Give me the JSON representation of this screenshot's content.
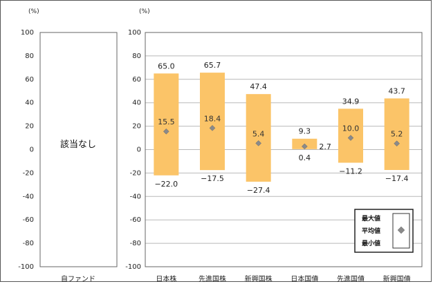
{
  "chart_data": [
    {
      "type": "bar",
      "subtype": "range",
      "ylabel": "(%)",
      "ylim": [
        -100,
        100
      ],
      "yticks": [
        100,
        80,
        60,
        40,
        20,
        0,
        -20,
        -40,
        -60,
        -80,
        -100
      ],
      "categories": [
        "自ファンド"
      ],
      "annotation": "該当なし",
      "grid": true
    },
    {
      "type": "bar",
      "subtype": "range",
      "ylabel": "(%)",
      "ylim": [
        -100,
        100
      ],
      "yticks": [
        100,
        80,
        60,
        40,
        20,
        0,
        -20,
        -40,
        -60,
        -80,
        -100
      ],
      "grid": true,
      "categories": [
        "日本株",
        "先進国株",
        "新興国株",
        "日本国債",
        "先進国債",
        "新興国債"
      ],
      "series": [
        {
          "name": "最大値",
          "values": [
            65.0,
            65.7,
            47.4,
            9.3,
            34.9,
            43.7
          ]
        },
        {
          "name": "平均値",
          "values": [
            15.5,
            18.4,
            5.4,
            2.7,
            10.0,
            5.2
          ]
        },
        {
          "name": "最小値",
          "values": [
            -22.0,
            -17.5,
            -27.4,
            0.4,
            -11.2,
            -17.4
          ]
        }
      ],
      "labels": {
        "max": [
          "65.0",
          "65.7",
          "47.4",
          "9.3",
          "34.9",
          "43.7"
        ],
        "mean": [
          "15.5",
          "18.4",
          "5.4",
          "2.7",
          "10.0",
          "5.2"
        ],
        "min": [
          "−22.0",
          "−17.5",
          "−27.4",
          "0.4",
          "−11.2",
          "−17.4"
        ]
      },
      "legend": {
        "position": "bottom-right",
        "items": [
          "最大値",
          "平均値",
          "最小値"
        ]
      },
      "colors": {
        "bar": "#fbc468",
        "marker": "#8a8a8a",
        "grid": "#b8b8b8"
      }
    }
  ]
}
